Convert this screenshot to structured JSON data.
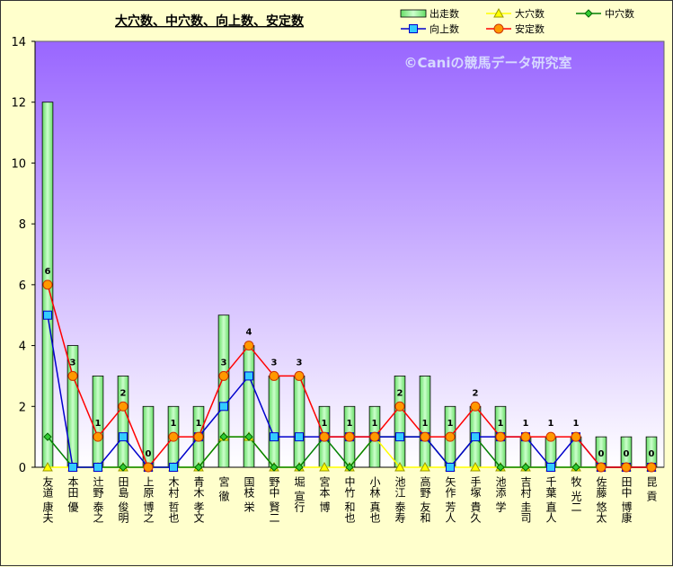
{
  "chart_data": {
    "type": "bar",
    "title": "大穴数、中穴数、向上数、安定数",
    "watermark": "©Caniの競馬データ研究室",
    "ylim": [
      0,
      14
    ],
    "yticks": [
      0,
      2,
      4,
      6,
      8,
      10,
      12,
      14
    ],
    "categories": [
      "友道 康夫",
      "本田 優",
      "辻野 泰之",
      "田島 俊明",
      "上原 博之",
      "木村 哲也",
      "青木 孝文",
      "宮 徹",
      "国枝 栄",
      "野中 賢二",
      "堀 宣行",
      "宮本 博",
      "中竹 和也",
      "小林 真也",
      "池江 泰寿",
      "高野 友和",
      "矢作 芳人",
      "手塚 貴久",
      "池添 学",
      "吉村 圭司",
      "千葉 直人",
      "牧 光二",
      "佐藤 悠太",
      "田中 博康",
      "昆 貢"
    ],
    "series": [
      {
        "name": "出走数",
        "kind": "bar",
        "color": "#99ff99",
        "values": [
          12,
          4,
          3,
          3,
          2,
          2,
          2,
          5,
          4,
          3,
          3,
          2,
          2,
          2,
          3,
          3,
          2,
          2,
          2,
          1,
          1,
          1,
          1,
          1,
          1
        ]
      },
      {
        "name": "大穴数",
        "kind": "line",
        "color": "#ffff00",
        "values": [
          0,
          0,
          0,
          0,
          0,
          0,
          0,
          1,
          1,
          0,
          0,
          0,
          0,
          1,
          0,
          0,
          0,
          0,
          0,
          0,
          0,
          0,
          0,
          0,
          0
        ]
      },
      {
        "name": "中穴数",
        "kind": "line",
        "color": "#008000",
        "values": [
          1,
          0,
          0,
          0,
          0,
          0,
          0,
          1,
          1,
          0,
          0,
          1,
          0,
          1,
          1,
          1,
          0,
          1,
          0,
          0,
          0,
          0,
          0,
          0,
          0
        ]
      },
      {
        "name": "向上数",
        "kind": "line",
        "color": "#0000cc",
        "values": [
          5,
          0,
          0,
          1,
          0,
          0,
          1,
          2,
          3,
          1,
          1,
          1,
          1,
          1,
          1,
          1,
          0,
          1,
          1,
          1,
          0,
          1,
          0,
          0,
          0
        ]
      },
      {
        "name": "安定数",
        "kind": "line",
        "color": "#ff0000",
        "values": [
          6,
          3,
          1,
          2,
          0,
          1,
          1,
          3,
          4,
          3,
          3,
          1,
          1,
          1,
          2,
          1,
          1,
          2,
          1,
          1,
          1,
          1,
          0,
          0,
          0
        ]
      }
    ],
    "data_labels": [
      6,
      3,
      1,
      2,
      0,
      1,
      1,
      3,
      4,
      3,
      3,
      1,
      1,
      1,
      2,
      1,
      1,
      2,
      1,
      1,
      1,
      1,
      0,
      0,
      0
    ],
    "grid": false,
    "legend": "top-right"
  }
}
